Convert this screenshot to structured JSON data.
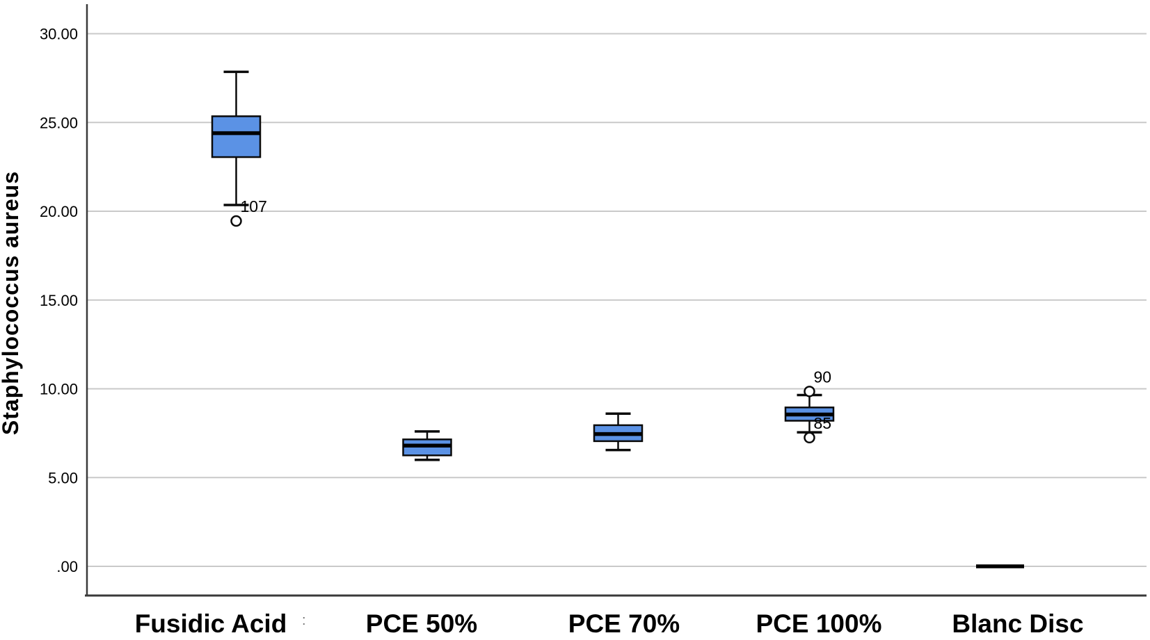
{
  "page": {
    "background": "#ffffff"
  },
  "chart_data": {
    "type": "boxplot",
    "title": "",
    "xlabel": "",
    "ylabel": "Staphylococcus aureus",
    "ylim": [
      -1.65,
      31.7
    ],
    "grid": true,
    "legend": false,
    "yticks": [
      {
        "value": 0,
        "label": ".00"
      },
      {
        "value": 5,
        "label": "5.00"
      },
      {
        "value": 10,
        "label": "10.00"
      },
      {
        "value": 15,
        "label": "15.00"
      },
      {
        "value": 20,
        "label": "20.00"
      },
      {
        "value": 25,
        "label": "25.00"
      },
      {
        "value": 30,
        "label": "30.00"
      }
    ],
    "categories": [
      "Fusidic Acid",
      "PCE 50%",
      "PCE 70%",
      "PCE 100%",
      "Blanc Disc"
    ],
    "series": [
      {
        "category": "Fusidic Acid",
        "whisker_low": 20.35,
        "q1": 23.05,
        "median": 24.4,
        "q3": 25.35,
        "whisker_high": 27.85,
        "outliers": [
          {
            "value": 19.45,
            "label": "107",
            "side": "below"
          }
        ]
      },
      {
        "category": "PCE 50%",
        "whisker_low": 6.0,
        "q1": 6.25,
        "median": 6.8,
        "q3": 7.15,
        "whisker_high": 7.6,
        "outliers": []
      },
      {
        "category": "PCE 70%",
        "whisker_low": 6.55,
        "q1": 7.05,
        "median": 7.45,
        "q3": 7.95,
        "whisker_high": 8.6,
        "outliers": []
      },
      {
        "category": "PCE 100%",
        "whisker_low": 7.55,
        "q1": 8.2,
        "median": 8.55,
        "q3": 8.95,
        "whisker_high": 9.65,
        "outliers": [
          {
            "value": 9.85,
            "label": "90",
            "side": "above"
          },
          {
            "value": 7.25,
            "label": "85",
            "side": "below"
          }
        ]
      },
      {
        "category": "Blanc Disc",
        "whisker_low": 0.0,
        "q1": 0.0,
        "median": 0.0,
        "q3": 0.0,
        "whisker_high": 0.0,
        "outliers": []
      }
    ],
    "colors": {
      "box_fill": "#5b92e5",
      "box_stroke": "#0a0a0a",
      "median_line": "#000000",
      "whisker": "#0a0a0a",
      "outlier_stroke": "#0a0a0a",
      "outlier_fill": "#ffffff",
      "gridline": "#c9c9c9",
      "axis_line": "#3a3a3a",
      "text": "#000000"
    },
    "stray_mark": ":"
  }
}
